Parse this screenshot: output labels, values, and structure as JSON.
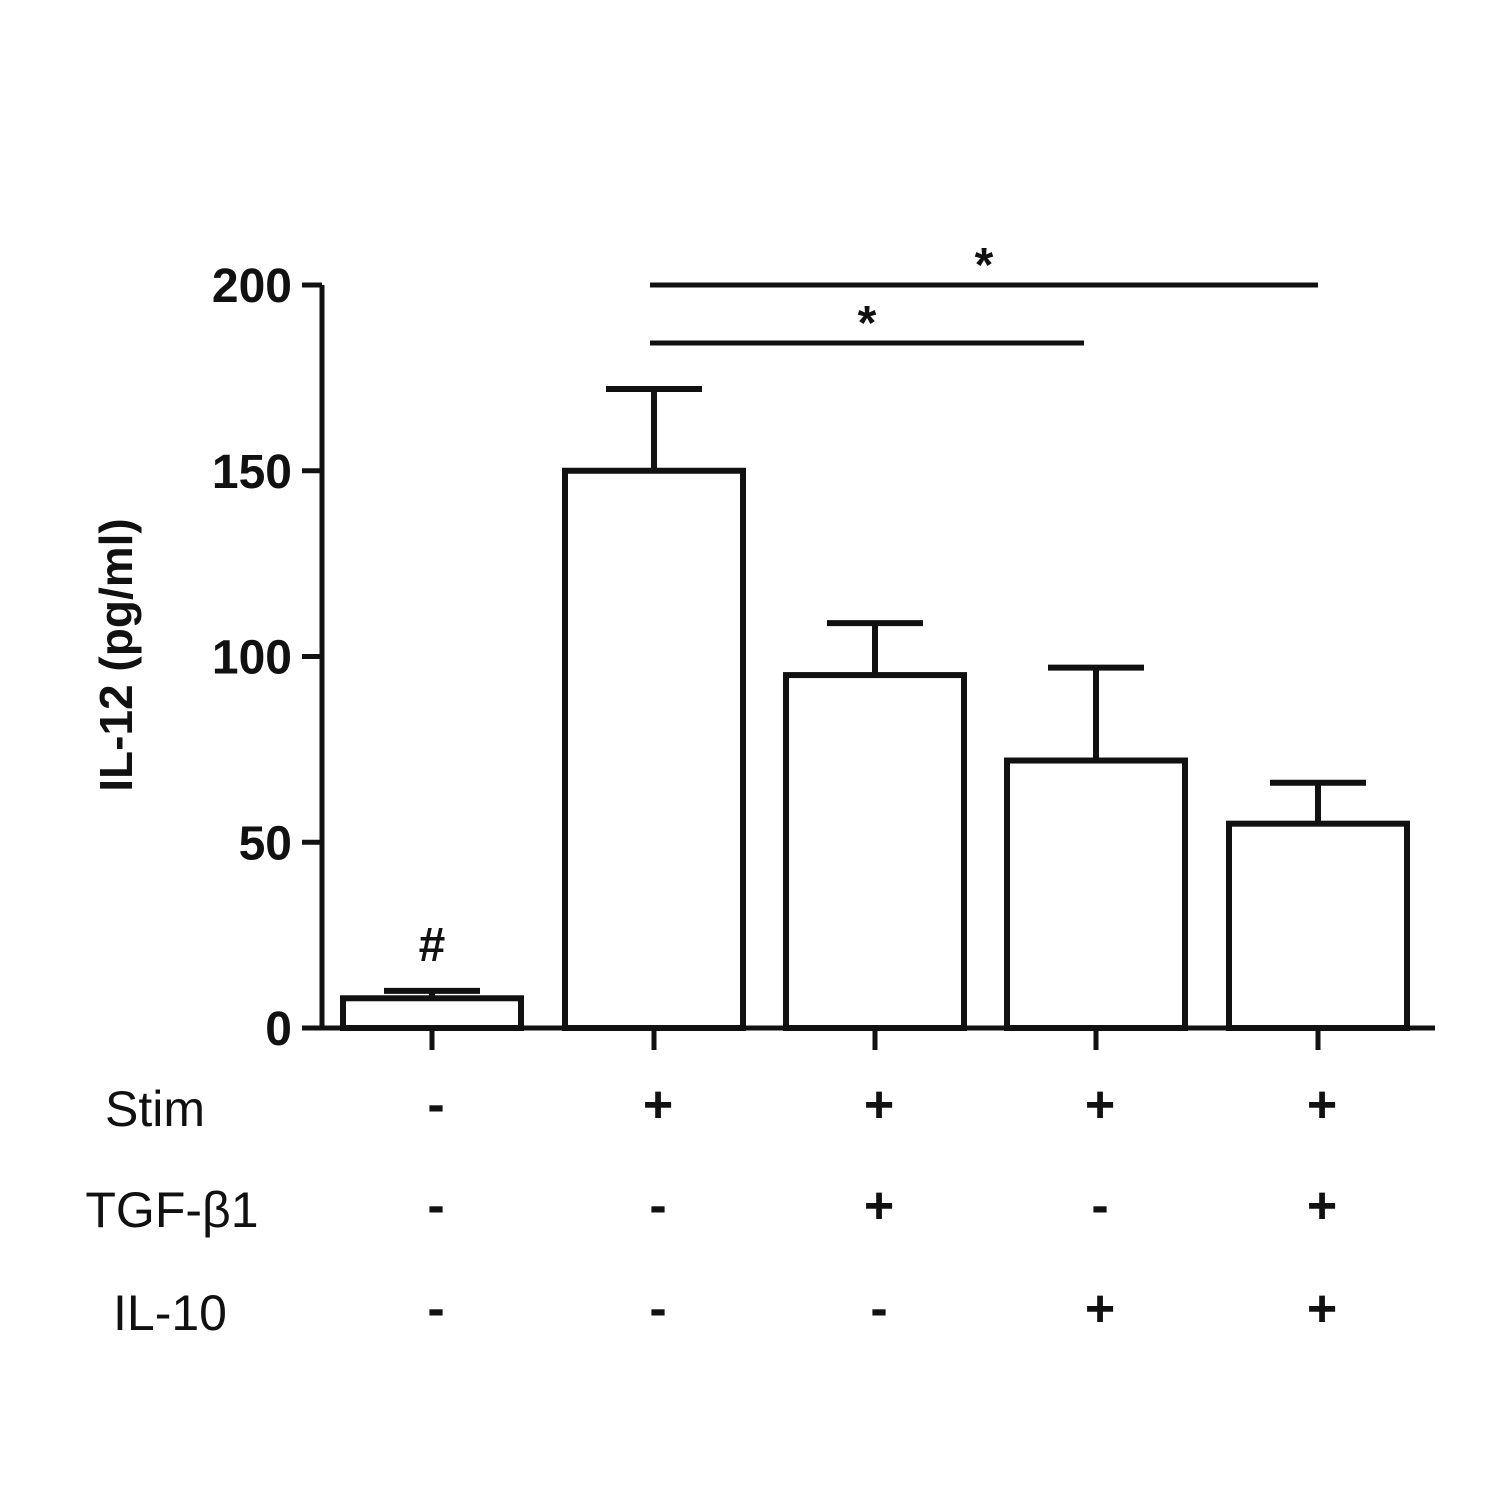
{
  "chart_data": {
    "type": "bar",
    "title": "",
    "ylabel": "IL-12 (pg/ml)",
    "xlabel": "",
    "ylim": [
      0,
      200
    ],
    "yticks": [
      0,
      50,
      100,
      150,
      200
    ],
    "categories": [
      "1",
      "2",
      "3",
      "4",
      "5"
    ],
    "values": [
      8,
      150,
      95,
      72,
      55
    ],
    "errors": [
      2,
      22,
      14,
      25,
      11
    ],
    "bar_color": "#ffffff",
    "edge_color": "#111111",
    "bar_annotations": [
      {
        "bar": 0,
        "text": "#"
      }
    ],
    "significance": [
      {
        "from": 1,
        "to": 4,
        "text": "*"
      },
      {
        "from": 1,
        "to": 3,
        "text": "*"
      }
    ],
    "condition_table": [
      {
        "label": "Stim",
        "signs": [
          "-",
          "+",
          "+",
          "+",
          "+"
        ]
      },
      {
        "label": "TGF-β1",
        "signs": [
          "-",
          "-",
          "+",
          "-",
          "+"
        ]
      },
      {
        "label": "IL-10",
        "signs": [
          "-",
          "-",
          "-",
          "+",
          "+"
        ]
      }
    ]
  }
}
